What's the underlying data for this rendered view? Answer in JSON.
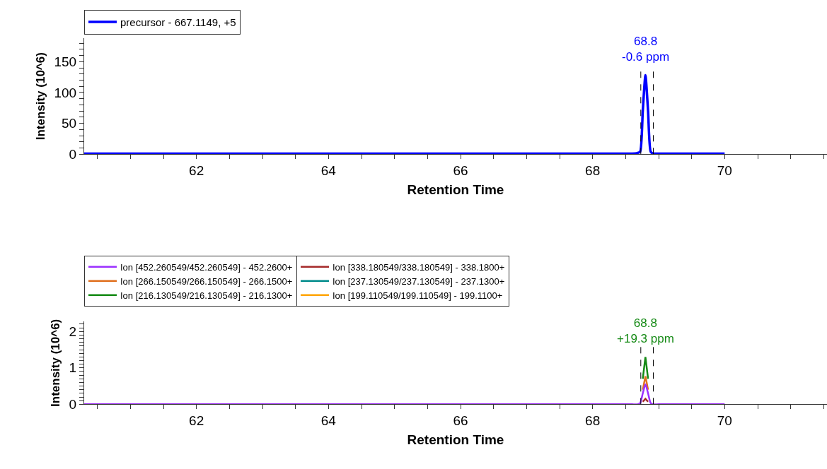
{
  "chart_data": [
    {
      "type": "line",
      "xlabel": "Retention Time",
      "ylabel": "Intensity (10^6)",
      "x": [
        60.3,
        68.5,
        68.6,
        68.68,
        68.72,
        68.76,
        68.8,
        68.84,
        68.88,
        68.92,
        69.0,
        70.0
      ],
      "series": [
        {
          "name": "precursor - 667.1149, +5",
          "color": "#0000ff",
          "values": [
            1,
            1,
            1,
            2,
            4,
            70,
            128,
            70,
            4,
            1,
            1,
            1
          ]
        }
      ],
      "annotations": [
        {
          "text": "68.8\n-0.6 ppm",
          "x": 68.8,
          "y": 128
        }
      ],
      "ref_lines": [
        {
          "axis": "x",
          "value": 68.73,
          "color": "#000000",
          "line_style": "dashed"
        },
        {
          "axis": "x",
          "value": 68.92,
          "color": "#000000",
          "line_style": "dashed"
        }
      ],
      "xlim": [
        60.3,
        71.55
      ],
      "xticks": [
        {
          "value": 60.5,
          "label": null
        },
        {
          "value": 61,
          "label": null
        },
        {
          "value": 61.5,
          "label": null
        },
        62,
        {
          "value": 62.5,
          "label": null
        },
        {
          "value": 63,
          "label": null
        },
        {
          "value": 63.5,
          "label": null
        },
        64,
        {
          "value": 64.5,
          "label": null
        },
        {
          "value": 65,
          "label": null
        },
        {
          "value": 65.5,
          "label": null
        },
        66,
        {
          "value": 66.5,
          "label": null
        },
        {
          "value": 67,
          "label": null
        },
        {
          "value": 67.5,
          "label": null
        },
        68,
        {
          "value": 68.5,
          "label": null
        },
        {
          "value": 69,
          "label": null
        },
        {
          "value": 69.5,
          "label": null
        },
        70,
        {
          "value": 70.5,
          "label": null
        },
        {
          "value": 71,
          "label": null
        },
        {
          "value": 71.5,
          "label": null
        }
      ],
      "ylim": [
        0,
        188
      ],
      "yticks": [
        0,
        {
          "value": 10,
          "label": null
        },
        {
          "value": 20,
          "label": null
        },
        {
          "value": 30,
          "label": null
        },
        {
          "value": 40,
          "label": null
        },
        50,
        {
          "value": 60,
          "label": null
        },
        {
          "value": 70,
          "label": null
        },
        {
          "value": 80,
          "label": null
        },
        {
          "value": 90,
          "label": null
        },
        100,
        {
          "value": 110,
          "label": null
        },
        {
          "value": 120,
          "label": null
        },
        {
          "value": 130,
          "label": null
        },
        {
          "value": 140,
          "label": null
        },
        150,
        {
          "value": 160,
          "label": null
        },
        {
          "value": 170,
          "label": null
        },
        {
          "value": 180,
          "label": null
        }
      ],
      "legend": "top left",
      "marker": "none",
      "line_style": "solid"
    },
    {
      "type": "line",
      "xlabel": "Retention Time",
      "ylabel": "Intensity (10^6)",
      "x": [
        60.3,
        68.5,
        68.6,
        68.68,
        68.72,
        68.76,
        68.8,
        68.84,
        68.88,
        68.92,
        69.0,
        70.0
      ],
      "series": [
        {
          "name": "Ion [452.260549/452.260549] - 452.2600+",
          "color": "#9b30ff",
          "values": [
            0,
            0,
            0,
            0,
            0.03,
            0.3,
            0.55,
            0.3,
            0.03,
            0,
            0,
            0
          ]
        },
        {
          "name": "Ion [338.180549/338.180549] - 338.1800+",
          "color": "#a52a2a",
          "x": [
            68.76,
            68.8,
            68.84
          ],
          "values": [
            0.07,
            0.15,
            0.07
          ]
        },
        {
          "name": "Ion [266.150549/266.150549] - 266.1500+",
          "color": "#e0701e",
          "x": [
            68.76,
            68.8,
            68.84
          ],
          "values": [
            0.4,
            0.77,
            0.4
          ]
        },
        {
          "name": "Ion [237.130549/237.130549] - 237.1300+",
          "color": "#008b8b",
          "values": [
            null,
            null,
            null,
            null,
            null,
            null,
            null,
            null,
            null,
            null,
            null,
            null
          ]
        },
        {
          "name": "Ion [216.130549/216.130549] - 216.1300+",
          "color": "#158a15",
          "x": [
            68.76,
            68.8,
            68.84
          ],
          "values": [
            0.7,
            1.3,
            0.7
          ]
        },
        {
          "name": "Ion [199.110549/199.110549] - 199.1100+",
          "color": "#ffa500",
          "values": [
            null,
            null,
            null,
            null,
            null,
            null,
            null,
            null,
            null,
            null,
            null,
            null
          ]
        }
      ],
      "annotations": [
        {
          "text": "68.8\n+19.3 ppm",
          "x": 68.8,
          "y": 1.3
        }
      ],
      "ref_lines": [
        {
          "axis": "x",
          "value": 68.73,
          "color": "#000000",
          "line_style": "dashed"
        },
        {
          "axis": "x",
          "value": 68.92,
          "color": "#000000",
          "line_style": "dashed"
        }
      ],
      "xlim": [
        60.3,
        71.55
      ],
      "xticks": [
        {
          "value": 60.5,
          "label": null
        },
        {
          "value": 61,
          "label": null
        },
        {
          "value": 61.5,
          "label": null
        },
        62,
        {
          "value": 62.5,
          "label": null
        },
        {
          "value": 63,
          "label": null
        },
        {
          "value": 63.5,
          "label": null
        },
        64,
        {
          "value": 64.5,
          "label": null
        },
        {
          "value": 65,
          "label": null
        },
        {
          "value": 65.5,
          "label": null
        },
        66,
        {
          "value": 66.5,
          "label": null
        },
        {
          "value": 67,
          "label": null
        },
        {
          "value": 67.5,
          "label": null
        },
        68,
        {
          "value": 68.5,
          "label": null
        },
        {
          "value": 69,
          "label": null
        },
        {
          "value": 69.5,
          "label": null
        },
        70,
        {
          "value": 70.5,
          "label": null
        },
        {
          "value": 71,
          "label": null
        },
        {
          "value": 71.5,
          "label": null
        }
      ],
      "ylim": [
        0,
        2.27
      ],
      "yticks": [
        0,
        {
          "value": 0.1,
          "label": null
        },
        {
          "value": 0.2,
          "label": null
        },
        {
          "value": 0.3,
          "label": null
        },
        {
          "value": 0.4,
          "label": null
        },
        {
          "value": 0.5,
          "label": null
        },
        {
          "value": 0.6,
          "label": null
        },
        {
          "value": 0.7,
          "label": null
        },
        {
          "value": 0.8,
          "label": null
        },
        {
          "value": 0.9,
          "label": null
        },
        1,
        {
          "value": 1.1,
          "label": null
        },
        {
          "value": 1.2,
          "label": null
        },
        {
          "value": 1.3,
          "label": null
        },
        {
          "value": 1.4,
          "label": null
        },
        {
          "value": 1.5,
          "label": null
        },
        {
          "value": 1.6,
          "label": null
        },
        {
          "value": 1.7,
          "label": null
        },
        {
          "value": 1.8,
          "label": null
        },
        {
          "value": 1.9,
          "label": null
        },
        2,
        {
          "value": 2.1,
          "label": null
        },
        {
          "value": 2.2,
          "label": null
        }
      ],
      "legend": "top left",
      "marker": "none",
      "line_style": "solid"
    }
  ]
}
